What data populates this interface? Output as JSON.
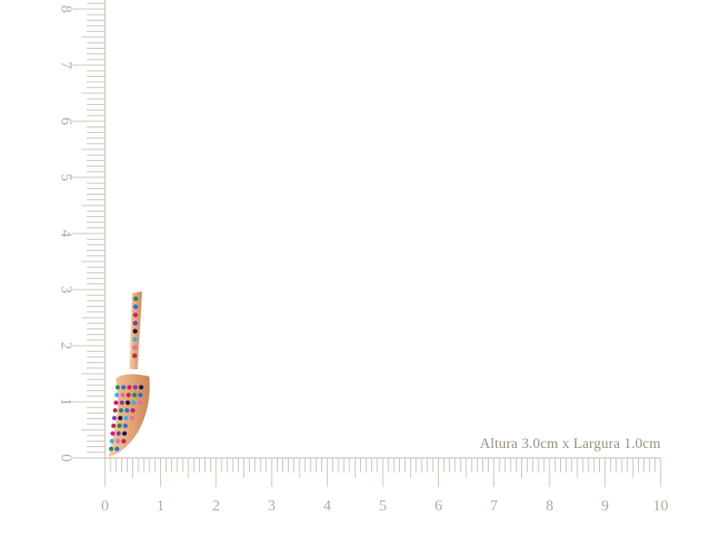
{
  "caption": "Altura 3.0cm x Largura 1.0cm",
  "ruler": {
    "unit": "cm",
    "x_labels": [
      "0",
      "1",
      "2",
      "3",
      "4",
      "5",
      "6",
      "7",
      "8",
      "9",
      "10"
    ],
    "y_labels": [
      "0",
      "1",
      "2",
      "3",
      "4",
      "5",
      "6",
      "7",
      "8"
    ],
    "color": "#c9c0b3",
    "label_color": "#b5aa9c"
  },
  "product": {
    "name_icon": "horn-pendant-image",
    "height_cm": 3.0,
    "width_cm": 1.0,
    "metal_color": "#e8b48a",
    "stone_colors": [
      "#1f8a5a",
      "#2f6fd0",
      "#d0206a",
      "#7a3fb0",
      "#1a1a3a",
      "#3cb0e0",
      "#e070a0",
      "#b03050"
    ]
  }
}
